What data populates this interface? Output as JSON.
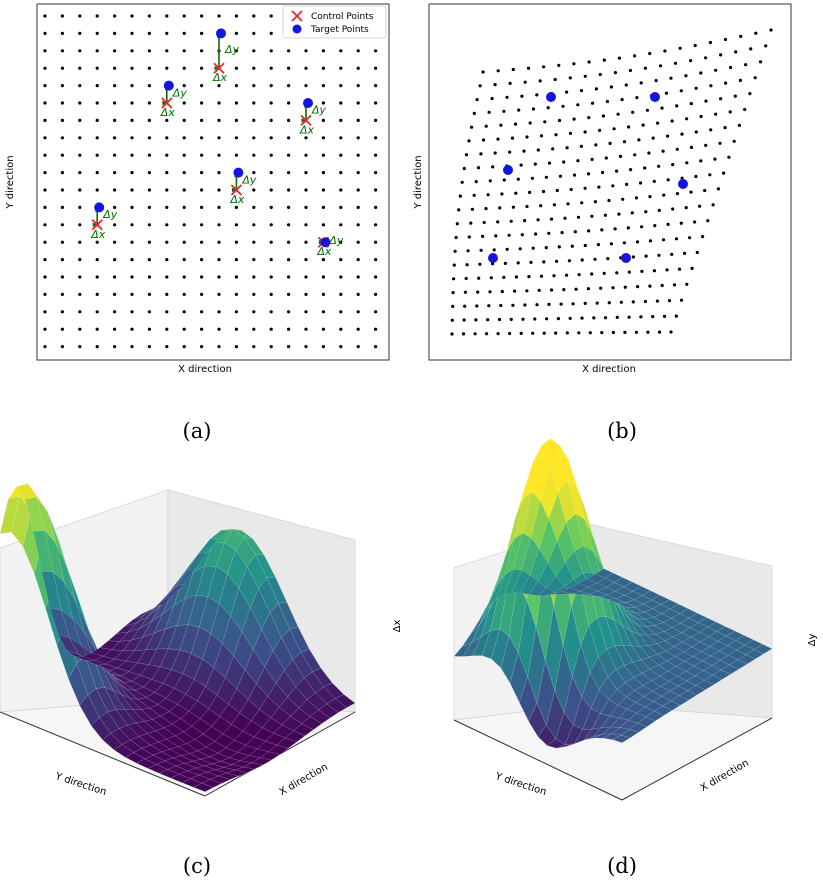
{
  "panels": {
    "a": {
      "caption": "(a)",
      "xlabel": "X direction",
      "ylabel": "Y direction",
      "legend": {
        "control_label": "Control Points",
        "target_label": "Target Points"
      },
      "delta_x_label": "Δx",
      "delta_y_label": "Δy",
      "grid": {
        "cols": 20,
        "rows": 20
      },
      "control_points": [
        [
          3,
          12
        ],
        [
          7,
          5
        ],
        [
          11,
          10
        ],
        [
          10,
          3
        ],
        [
          15,
          6
        ],
        [
          16,
          13
        ]
      ],
      "target_points": [
        [
          3,
          11
        ],
        [
          7,
          4
        ],
        [
          11,
          9
        ],
        [
          10,
          1
        ],
        [
          15,
          5
        ],
        [
          16,
          13
        ]
      ]
    },
    "b": {
      "caption": "(b)",
      "xlabel": "X direction",
      "ylabel": "Y direction"
    },
    "c": {
      "caption": "(c)",
      "xlabel": "X direction",
      "ylabel": "Y direction",
      "zlabel": "Δx"
    },
    "d": {
      "caption": "(d)",
      "xlabel": "X direction",
      "ylabel": "Y direction",
      "zlabel": "Δy"
    },
    "colors": {
      "control": "#e8262c",
      "target": "#1515e0",
      "arrow": "#0d6b0d",
      "surface_low": "#440154",
      "surface_mid": "#21918c",
      "surface_high": "#fde725"
    }
  }
}
